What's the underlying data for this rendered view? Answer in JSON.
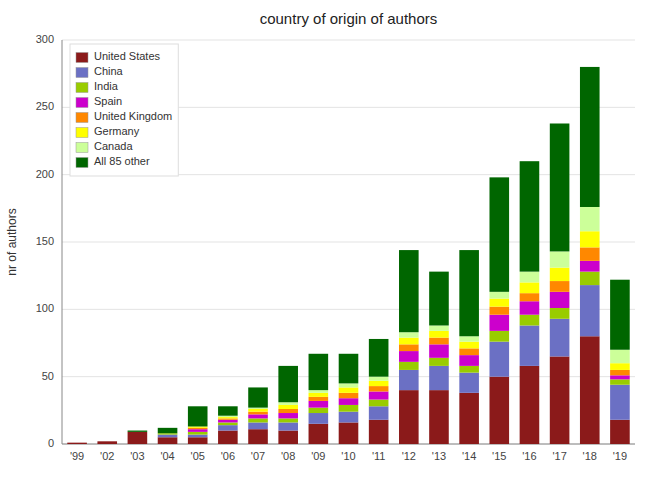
{
  "chart_data": {
    "type": "bar",
    "stacked": true,
    "title": "country of origin of authors",
    "ylabel": "nr of authors",
    "categories": [
      "'99",
      "'02",
      "'03",
      "'04",
      "'05",
      "'06",
      "'07",
      "'08",
      "'09",
      "'10",
      "'11",
      "'12",
      "'13",
      "'14",
      "'15",
      "'16",
      "'17",
      "'18",
      "'19"
    ],
    "series": [
      {
        "name": "United States",
        "color": "#8b1a1a",
        "values": [
          1,
          2,
          9,
          5,
          5,
          10,
          11,
          10,
          15,
          16,
          18,
          40,
          40,
          38,
          50,
          58,
          65,
          80,
          18
        ]
      },
      {
        "name": "China",
        "color": "#6b70c4",
        "values": [
          0,
          0,
          0,
          2,
          2,
          4,
          5,
          6,
          8,
          8,
          10,
          15,
          18,
          15,
          26,
          30,
          28,
          38,
          26
        ]
      },
      {
        "name": "India",
        "color": "#99cc00",
        "values": [
          0,
          0,
          0,
          1,
          2,
          2,
          3,
          3,
          4,
          5,
          5,
          6,
          6,
          5,
          8,
          8,
          8,
          10,
          4
        ]
      },
      {
        "name": "Spain",
        "color": "#cc00cc",
        "values": [
          0,
          0,
          0,
          0,
          2,
          2,
          3,
          4,
          5,
          5,
          6,
          8,
          10,
          8,
          12,
          10,
          12,
          8,
          3
        ]
      },
      {
        "name": "United Kingdom",
        "color": "#ff8800",
        "values": [
          0,
          0,
          0,
          0,
          1,
          1,
          2,
          3,
          3,
          4,
          4,
          5,
          5,
          5,
          6,
          6,
          8,
          10,
          4
        ]
      },
      {
        "name": "Germany",
        "color": "#ffff00",
        "values": [
          0,
          0,
          0,
          0,
          1,
          1,
          2,
          3,
          3,
          4,
          4,
          5,
          5,
          5,
          6,
          8,
          10,
          12,
          5
        ]
      },
      {
        "name": "Canada",
        "color": "#ccff99",
        "values": [
          0,
          0,
          0,
          0,
          0,
          1,
          1,
          2,
          2,
          3,
          3,
          4,
          4,
          4,
          5,
          8,
          12,
          18,
          10
        ]
      },
      {
        "name": "All 85 other",
        "color": "#006600",
        "values": [
          0,
          0,
          1,
          4,
          15,
          7,
          15,
          27,
          27,
          22,
          28,
          61,
          40,
          64,
          85,
          82,
          95,
          104,
          52
        ]
      }
    ],
    "ylim": [
      0,
      300
    ],
    "yticks": [
      0,
      50,
      100,
      150,
      200,
      250,
      300
    ],
    "grid": true,
    "legend": "upper left"
  }
}
